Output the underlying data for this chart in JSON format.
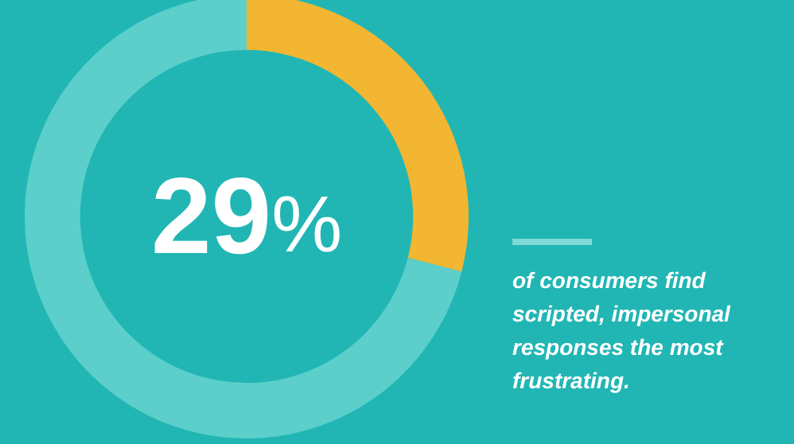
{
  "chart_data": {
    "type": "donut",
    "categories": [
      null,
      null
    ],
    "values": [
      29,
      71
    ],
    "colors": [
      "#f2b632",
      "#5ccfcb"
    ],
    "value_labels": [
      "29%",
      null
    ],
    "annotations": [
      "of consumers find scripted, impersonal responses the most frustrating."
    ]
  }
}
